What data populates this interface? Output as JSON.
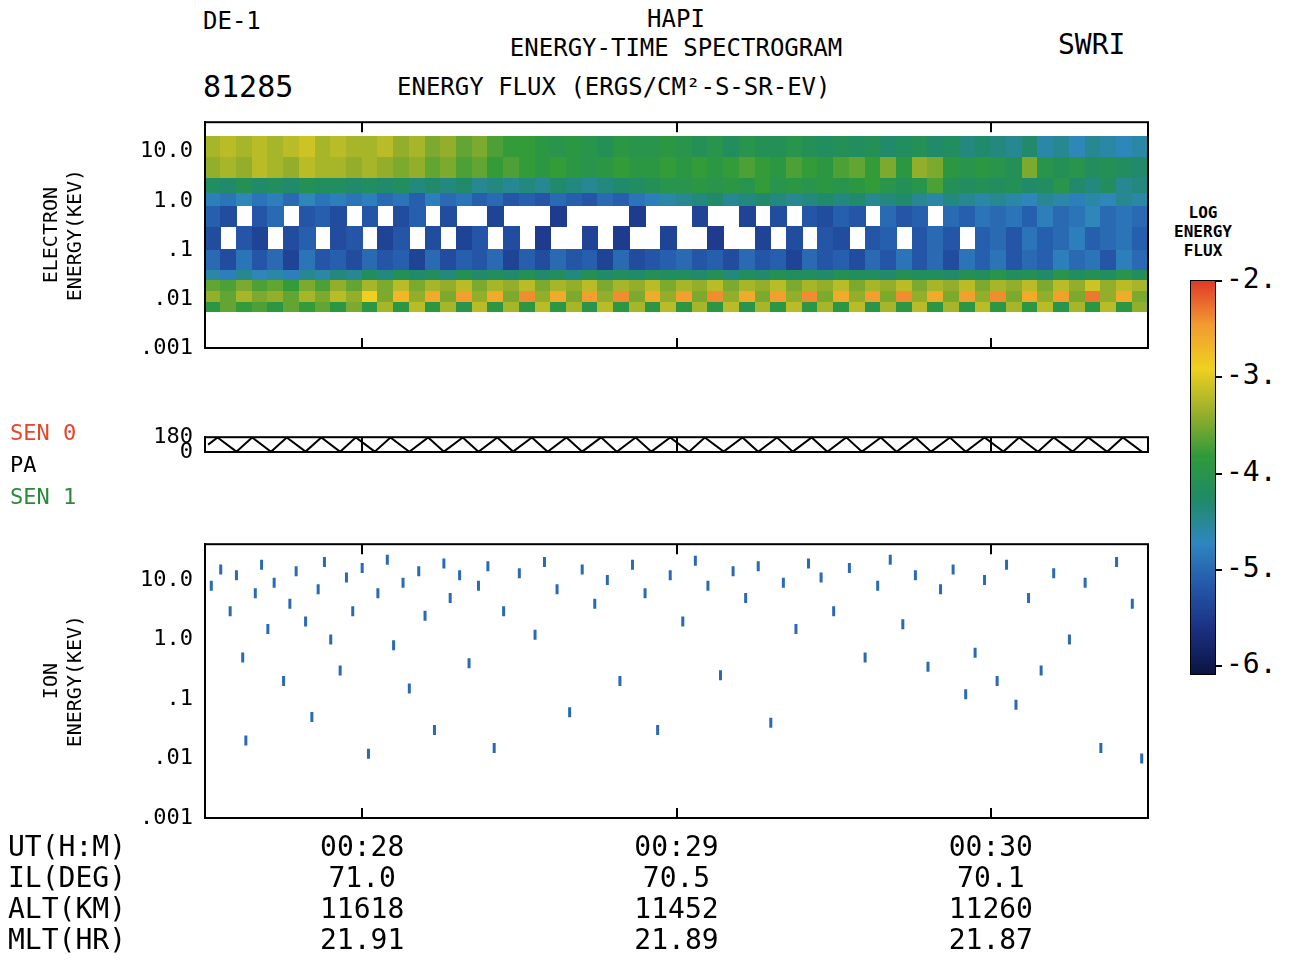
{
  "header": {
    "top_left": "DE-1",
    "date": "81285",
    "title": [
      "HAPI",
      "ENERGY-TIME SPECTROGRAM"
    ],
    "subtitle": "ENERGY FLUX (ERGS/CM²-S-SR-EV)",
    "top_right": "SWRI"
  },
  "colorbar": {
    "label": "LOG ENERGY FLUX",
    "range": [
      -6.1,
      -2
    ],
    "ticks": [
      {
        "value": -2,
        "label": "-2."
      },
      {
        "value": -3,
        "label": "-3."
      },
      {
        "value": -4,
        "label": "-4."
      },
      {
        "value": -5,
        "label": "-5."
      },
      {
        "value": -6,
        "label": "-6."
      }
    ],
    "colors": [
      "#0b1440",
      "#1b2f80",
      "#2456a8",
      "#2f86c0",
      "#1f8a66",
      "#2f9a3a",
      "#9ab02a",
      "#f0d020",
      "#f29a30",
      "#e03a28"
    ]
  },
  "ephemeris": {
    "ut_label": "UT(H:M)",
    "rows": [
      {
        "label": "IL(DEG)",
        "values": [
          "71.0",
          "70.5",
          "70.1"
        ]
      },
      {
        "label": "ALT(KM)",
        "values": [
          "11618",
          "11452",
          "11260"
        ]
      },
      {
        "label": "MLT(HR)",
        "values": [
          "21.91",
          "21.89",
          "21.87"
        ]
      }
    ]
  },
  "chart_data": [
    {
      "type": "heatmap",
      "y_label": "ELECTRON ENERGY(KEV)",
      "log": "y",
      "tick_labels": "y",
      "xlim": [
        27.5,
        30.5
      ],
      "xticks": [
        28,
        29,
        30
      ],
      "ylim": [
        0.001,
        40
      ],
      "yticks": [
        {
          "value": 10,
          "label": "10.0"
        },
        {
          "value": 1,
          "label": "1.0"
        },
        {
          "value": 0.1,
          "label": ".1"
        },
        {
          "value": 0.01,
          "label": ".01"
        },
        {
          "value": 0.001,
          "label": ".001"
        }
      ],
      "x_edges": [
        27.5,
        27.55,
        27.6,
        27.65,
        27.7,
        27.75,
        27.8,
        27.85,
        27.9,
        27.95,
        28.0,
        28.05,
        28.1,
        28.15,
        28.2,
        28.25,
        28.3,
        28.35,
        28.4,
        28.45,
        28.5,
        28.55,
        28.6,
        28.65,
        28.7,
        28.75,
        28.8,
        28.85,
        28.9,
        28.95,
        29.0,
        29.05,
        29.1,
        29.15,
        29.2,
        29.25,
        29.3,
        29.35,
        29.4,
        29.45,
        29.5,
        29.55,
        29.6,
        29.65,
        29.7,
        29.75,
        29.8,
        29.85,
        29.9,
        29.95,
        30.0,
        30.05,
        30.1,
        30.15,
        30.2,
        30.25,
        30.3,
        30.35,
        30.4,
        30.45,
        30.5
      ],
      "y_edges": [
        0.0055,
        0.009,
        0.015,
        0.025,
        0.04,
        0.1,
        0.3,
        0.8,
        1.5,
        3,
        8,
        20
      ],
      "cells": [
        [
          -3.9,
          -3.6,
          -3.8,
          -3.7,
          -3.9,
          -3.6,
          -3.8,
          -3.6,
          -3.9,
          -3.5,
          -3.9,
          -3.3,
          -3.9,
          -3.2,
          -3.9,
          -3.3,
          -4.0,
          -3.2,
          -3.9,
          -3.3,
          -3.9,
          -3.2,
          -3.9,
          -3.3,
          -4.0,
          -3.2,
          -3.9,
          -3.3,
          -3.9,
          -3.2,
          -3.9,
          -3.3,
          -3.9,
          -3.2,
          -4.0,
          -3.3,
          -3.9,
          -3.2,
          -3.9,
          -3.3,
          -3.9,
          -3.2,
          -4.0,
          -3.3,
          -3.9,
          -3.2,
          -3.9,
          -3.3,
          -3.9,
          -3.2,
          -3.9,
          -3.3,
          -3.9,
          -3.2,
          -4.0,
          -3.3,
          -3.9,
          -3.2,
          -3.9,
          -3.4
        ],
        [
          -3.4,
          -3.6,
          -3.3,
          -3.5,
          -3.4,
          -3.6,
          -3.3,
          -3.5,
          -3.2,
          -3.4,
          -2.9,
          -3.5,
          -2.7,
          -3.4,
          -2.6,
          -3.5,
          -2.5,
          -3.4,
          -2.6,
          -3.5,
          -2.4,
          -3.4,
          -2.6,
          -3.5,
          -2.5,
          -3.4,
          -2.4,
          -3.5,
          -2.6,
          -3.4,
          -2.5,
          -3.5,
          -2.4,
          -3.4,
          -2.6,
          -3.5,
          -2.5,
          -3.4,
          -2.4,
          -3.5,
          -2.6,
          -3.4,
          -2.5,
          -3.5,
          -2.4,
          -3.4,
          -2.6,
          -3.5,
          -2.5,
          -3.4,
          -2.4,
          -3.5,
          -2.6,
          -3.4,
          -2.5,
          -3.5,
          -2.3,
          -3.4,
          -2.6,
          -3.5
        ],
        [
          -3.6,
          -3.7,
          -3.5,
          -3.7,
          -3.6,
          -3.8,
          -3.5,
          -3.7,
          -3.4,
          -3.6,
          -3.3,
          -3.5,
          -3.2,
          -3.5,
          -3.3,
          -3.4,
          -3.2,
          -3.5,
          -3.3,
          -3.4,
          -3.2,
          -3.5,
          -3.3,
          -3.4,
          -3.2,
          -3.5,
          -3.3,
          -3.4,
          -3.2,
          -3.5,
          -3.3,
          -3.4,
          -3.2,
          -3.5,
          -3.3,
          -3.4,
          -3.2,
          -3.5,
          -3.3,
          -3.4,
          -3.2,
          -3.5,
          -3.3,
          -3.4,
          -3.2,
          -3.5,
          -3.3,
          -3.4,
          -3.2,
          -3.5,
          -3.3,
          -3.4,
          -3.2,
          -3.5,
          -3.2,
          -3.4,
          -3.1,
          -3.4,
          -3.2,
          -3.3
        ],
        [
          -4.6,
          -4.8,
          -4.5,
          -4.7,
          -4.6,
          -4.8,
          -4.5,
          -4.6,
          -4.4,
          -4.5,
          -4.2,
          -4.4,
          -4.1,
          -4.3,
          -4.2,
          -4.4,
          -4.1,
          -4.3,
          -4.2,
          -4.3,
          -4.1,
          -4.3,
          -4.2,
          -4.4,
          -4.1,
          -4.3,
          -4.2,
          -4.3,
          -4.1,
          -4.2,
          -4.2,
          -4.3,
          -4.1,
          -4.4,
          -4.2,
          -4.3,
          -4.1,
          -4.2,
          -4.2,
          -4.3,
          -4.1,
          -4.2,
          -4.2,
          -4.3,
          -4.1,
          -4.2,
          -4.2,
          -4.3,
          -4.1,
          -4.2,
          -4.0,
          -4.2,
          -4.1,
          -4.3,
          -4.0,
          -4.2,
          -4.1,
          -4.2,
          -4.0,
          -4.2
        ],
        [
          -5.0,
          -5.3,
          -4.9,
          -5.2,
          -5.0,
          -5.4,
          -4.9,
          -5.2,
          -5.1,
          -5.3,
          -5.0,
          -5.2,
          -5.1,
          -5.4,
          -5.0,
          -5.3,
          -5.1,
          -5.2,
          -5.0,
          -5.4,
          -5.1,
          -5.3,
          -5.0,
          -5.2,
          -5.1,
          -5.4,
          -5.0,
          -5.3,
          -5.2,
          -5.1,
          -5.0,
          -5.2,
          -5.1,
          -5.3,
          -5.0,
          -5.2,
          -5.1,
          -5.4,
          -5.0,
          -5.2,
          -5.1,
          -5.3,
          -5.0,
          -5.2,
          -4.9,
          -5.2,
          -5.0,
          -5.3,
          -4.9,
          -5.1,
          -4.9,
          -5.2,
          -5.0,
          -5.1,
          -4.8,
          -5.0,
          -4.9,
          -5.2,
          -4.8,
          -5.0
        ],
        [
          -5.3,
          null,
          -5.2,
          -5.4,
          null,
          -5.3,
          -5.1,
          null,
          -5.3,
          -5.2,
          null,
          -5.4,
          -5.2,
          null,
          -5.3,
          null,
          -5.4,
          -5.2,
          null,
          -5.3,
          null,
          -5.5,
          null,
          null,
          -5.4,
          null,
          -5.5,
          null,
          null,
          -5.4,
          null,
          null,
          -5.5,
          null,
          null,
          -5.4,
          null,
          -5.3,
          null,
          -5.2,
          -5.3,
          null,
          -5.2,
          -5.1,
          null,
          -5.2,
          -5.0,
          -5.2,
          null,
          -5.1,
          -5.0,
          -5.2,
          -4.9,
          -5.1,
          -5.0,
          -4.8,
          -5.1,
          -5.0,
          -4.9,
          -5.1
        ],
        [
          -5.1,
          -5.3,
          null,
          -5.2,
          -5.0,
          null,
          -5.2,
          -5.1,
          -5.3,
          null,
          -5.2,
          null,
          -5.3,
          -5.1,
          null,
          -5.3,
          null,
          null,
          -5.4,
          null,
          null,
          null,
          -5.5,
          null,
          null,
          null,
          null,
          -5.5,
          null,
          null,
          null,
          -5.4,
          null,
          null,
          -5.4,
          null,
          -5.3,
          null,
          -5.2,
          -5.3,
          -5.1,
          -5.2,
          null,
          -5.0,
          -5.2,
          -5.1,
          null,
          -5.0,
          -5.1,
          -4.9,
          -5.0,
          -4.9,
          -5.1,
          -4.8,
          -5.0,
          -4.9,
          -4.7,
          -5.0,
          -4.9,
          -5.0
        ],
        [
          -4.8,
          -4.9,
          -4.7,
          -4.9,
          -4.8,
          -5.0,
          -4.7,
          -4.9,
          -4.8,
          -4.9,
          -4.8,
          -5.0,
          -4.9,
          -5.1,
          -4.8,
          -5.0,
          -4.9,
          -5.1,
          -5.0,
          -5.2,
          -5.1,
          -5.2,
          -5.0,
          -5.1,
          -5.2,
          -5.0,
          -5.1,
          -4.9,
          -4.8,
          -4.6,
          -4.5,
          -4.4,
          -4.3,
          -4.5,
          -4.4,
          -4.3,
          -4.4,
          -4.5,
          -4.4,
          -4.3,
          -4.4,
          -4.3,
          -4.5,
          -4.4,
          -4.3,
          -4.5,
          -4.6,
          -4.4,
          -4.5,
          -4.6,
          -4.5,
          -4.6,
          -4.7,
          -4.5,
          -4.6,
          -4.8,
          -4.6,
          -4.7,
          -4.5,
          -4.6
        ],
        [
          -4.2,
          -4.3,
          -4.1,
          -4.3,
          -4.2,
          -4.3,
          -4.1,
          -4.2,
          -4.2,
          -4.3,
          -4.2,
          -4.3,
          -4.2,
          -4.4,
          -4.3,
          -4.4,
          -4.3,
          -4.5,
          -4.4,
          -4.5,
          -4.4,
          -4.5,
          -4.3,
          -4.4,
          -4.5,
          -4.4,
          -4.3,
          -4.2,
          -4.1,
          -4.0,
          -4.0,
          -3.9,
          -4.0,
          -3.9,
          -4.0,
          -3.8,
          -4.0,
          -3.9,
          -4.0,
          -3.9,
          -4.0,
          -3.9,
          -3.8,
          -4.0,
          -4.1,
          -4.0,
          -3.7,
          -4.1,
          -4.2,
          -4.1,
          -4.2,
          -4.1,
          -4.3,
          -4.2,
          -4.0,
          -4.3,
          -4.4,
          -4.2,
          -4.5,
          -4.4
        ],
        [
          -3.4,
          -3.3,
          -3.4,
          -3.2,
          -3.3,
          -3.4,
          -3.2,
          -3.3,
          -3.3,
          -3.4,
          -3.3,
          -3.4,
          -3.5,
          -3.4,
          -3.6,
          -3.5,
          -3.7,
          -3.6,
          -3.8,
          -3.7,
          -3.8,
          -3.9,
          -3.8,
          -3.9,
          -4.0,
          -3.9,
          -3.8,
          -3.9,
          -3.9,
          -3.8,
          -3.9,
          -3.8,
          -3.9,
          -3.8,
          -3.7,
          -3.8,
          -3.9,
          -3.7,
          -3.8,
          -3.9,
          -3.7,
          -3.6,
          -3.8,
          -3.5,
          -3.9,
          -3.4,
          -3.5,
          -3.9,
          -4.0,
          -3.9,
          -4.0,
          -4.1,
          -3.5,
          -4.0,
          -4.1,
          -4.0,
          -4.2,
          -4.1,
          -4.2,
          -4.3
        ],
        [
          -3.3,
          -3.2,
          -3.3,
          -3.2,
          -3.3,
          -3.2,
          -3.1,
          -3.3,
          -3.2,
          -3.3,
          -3.3,
          -3.2,
          -3.4,
          -3.3,
          -3.5,
          -3.4,
          -3.6,
          -3.5,
          -3.7,
          -3.8,
          -3.8,
          -3.9,
          -4.0,
          -3.9,
          -4.0,
          -4.1,
          -3.9,
          -4.0,
          -4.0,
          -3.9,
          -4.0,
          -4.1,
          -4.0,
          -4.2,
          -4.0,
          -4.1,
          -4.1,
          -4.0,
          -4.1,
          -4.2,
          -4.1,
          -4.2,
          -4.1,
          -4.3,
          -4.2,
          -4.1,
          -4.3,
          -4.2,
          -4.4,
          -4.3,
          -4.4,
          -4.5,
          -4.3,
          -4.6,
          -4.5,
          -4.7,
          -4.5,
          -4.6,
          -4.7,
          -4.6
        ]
      ]
    },
    {
      "type": "line",
      "tick_labels": "y",
      "color": "#000000",
      "y_labels": [
        {
          "text": "SEN 0",
          "color": "#e8442a"
        },
        {
          "text": "PA",
          "color": "#000000"
        },
        {
          "text": "SEN 1",
          "color": "#2a8a3a"
        }
      ],
      "xlim": [
        27.5,
        30.5
      ],
      "xticks": [
        28,
        29,
        30
      ],
      "ylim": [
        0,
        180
      ],
      "yticks": [
        180,
        0
      ],
      "x": [
        27.51,
        27.54,
        27.6,
        27.65,
        27.71,
        27.76,
        27.82,
        27.87,
        27.93,
        27.98,
        28.04,
        28.09,
        28.15,
        28.21,
        28.26,
        28.32,
        28.37,
        28.43,
        28.48,
        28.54,
        28.59,
        28.65,
        28.7,
        28.76,
        28.81,
        28.87,
        28.92,
        28.98,
        29.04,
        29.09,
        29.15,
        29.21,
        29.26,
        29.32,
        29.37,
        29.43,
        29.48,
        29.54,
        29.59,
        29.65,
        29.7,
        29.76,
        29.81,
        29.87,
        29.92,
        29.98,
        30.04,
        30.09,
        30.15,
        30.2,
        30.26,
        30.31,
        30.37,
        30.42,
        30.48
      ],
      "values": [
        90,
        176,
        4,
        177,
        3,
        176,
        5,
        177,
        3,
        178,
        4,
        176,
        3,
        177,
        4,
        176,
        3,
        177,
        5,
        176,
        3,
        177,
        4,
        178,
        3,
        176,
        4,
        177,
        3,
        176,
        5,
        177,
        3,
        176,
        4,
        177,
        3,
        178,
        4,
        176,
        3,
        177,
        4,
        176,
        3,
        177,
        5,
        176,
        3,
        177,
        4,
        178,
        3,
        177,
        5
      ]
    },
    {
      "type": "scatter",
      "y_label": "ION ENERGY(KEV)",
      "log": "y",
      "marker": "dash",
      "flux": -5,
      "xlim": [
        27.5,
        30.5
      ],
      "xticks": [
        {
          "value": 28,
          "label": "00:28"
        },
        {
          "value": 29,
          "label": "00:29"
        },
        {
          "value": 30,
          "label": "00:30"
        }
      ],
      "ylim": [
        0.001,
        40
      ],
      "yticks": [
        {
          "value": 10,
          "label": "10.0"
        },
        {
          "value": 1,
          "label": "1.0"
        },
        {
          "value": 0.1,
          "label": ".1"
        },
        {
          "value": 0.01,
          "label": ".01"
        },
        {
          "value": 0.001,
          "label": ".001"
        }
      ],
      "x": [
        27.52,
        27.55,
        27.58,
        27.6,
        27.62,
        27.63,
        27.66,
        27.68,
        27.7,
        27.72,
        27.75,
        27.77,
        27.79,
        27.82,
        27.84,
        27.86,
        27.88,
        27.9,
        27.93,
        27.95,
        27.97,
        28.0,
        28.02,
        28.05,
        28.08,
        28.1,
        28.13,
        28.15,
        28.18,
        28.2,
        28.23,
        28.26,
        28.28,
        28.31,
        28.34,
        28.37,
        28.4,
        28.42,
        28.45,
        28.5,
        28.55,
        28.58,
        28.62,
        28.66,
        28.7,
        28.74,
        28.78,
        28.82,
        28.86,
        28.9,
        28.94,
        28.98,
        29.02,
        29.06,
        29.1,
        29.14,
        29.18,
        29.22,
        29.26,
        29.3,
        29.34,
        29.38,
        29.42,
        29.46,
        29.5,
        29.55,
        29.6,
        29.64,
        29.68,
        29.72,
        29.76,
        29.8,
        29.84,
        29.88,
        29.92,
        29.95,
        29.98,
        30.02,
        30.05,
        30.08,
        30.12,
        30.16,
        30.2,
        30.25,
        30.3,
        30.35,
        30.4,
        30.45,
        30.48
      ],
      "values": [
        8,
        15,
        3,
        12,
        0.5,
        0.02,
        6,
        18,
        1.5,
        9,
        0.2,
        4,
        14,
        2,
        0.05,
        7,
        20,
        1,
        0.3,
        11,
        3,
        16,
        0.012,
        6,
        22,
        0.8,
        9,
        0.15,
        14,
        2.5,
        0.03,
        19,
        5,
        12,
        0.4,
        8,
        17,
        0.015,
        3,
        13,
        1.2,
        20,
        7,
        0.06,
        15,
        4,
        10,
        0.2,
        18,
        6,
        0.03,
        12,
        2,
        21,
        8,
        0.25,
        14,
        5,
        17,
        0.04,
        9,
        1.5,
        19,
        11,
        3,
        16,
        0.5,
        8,
        22,
        1.8,
        12,
        0.35,
        7,
        15,
        0.12,
        0.6,
        10,
        0.2,
        18,
        0.08,
        5,
        0.3,
        13,
        1,
        9,
        0.015,
        20,
        4,
        0.01
      ]
    }
  ]
}
